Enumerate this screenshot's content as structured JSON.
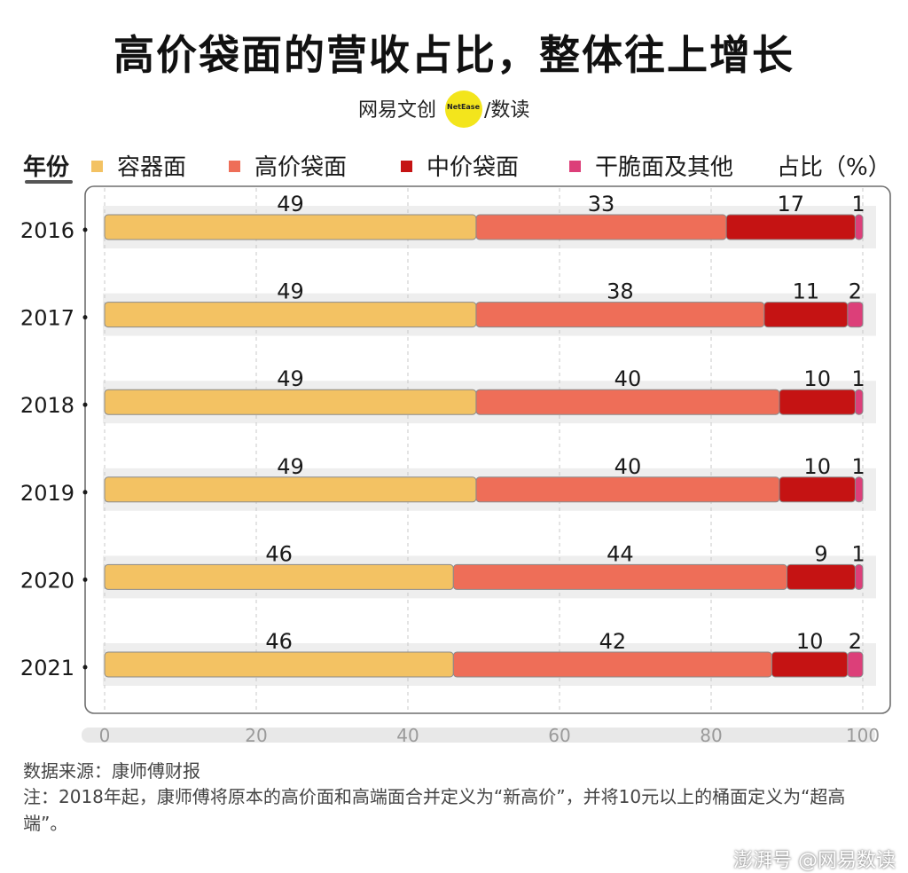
{
  "title": "高价袋面的营收占比，整体往上增长",
  "brand": {
    "left": "网易文创",
    "badge": "NetEase",
    "right": "∕数读"
  },
  "legend": {
    "year_header": "年份",
    "unit": "占比（%）",
    "items": [
      {
        "label": "容器面",
        "color": "#f3c263"
      },
      {
        "label": "高价袋面",
        "color": "#ee6e58"
      },
      {
        "label": "中价袋面",
        "color": "#c51313"
      },
      {
        "label": "干脆面及其他",
        "color": "#dc3f79"
      }
    ]
  },
  "chart_data": {
    "type": "bar",
    "orientation": "horizontal-stacked",
    "categories": [
      "2016",
      "2017",
      "2018",
      "2019",
      "2020",
      "2021"
    ],
    "series": [
      {
        "name": "容器面",
        "values": [
          49,
          49,
          49,
          49,
          46,
          46
        ],
        "color": "#f3c263"
      },
      {
        "name": "高价袋面",
        "values": [
          33,
          38,
          40,
          40,
          44,
          42
        ],
        "color": "#ee6e58"
      },
      {
        "name": "中价袋面",
        "values": [
          17,
          11,
          10,
          10,
          9,
          10
        ],
        "color": "#c51313"
      },
      {
        "name": "干脆面及其他",
        "values": [
          1,
          2,
          1,
          1,
          1,
          2
        ],
        "color": "#dc3f79"
      }
    ],
    "xlim": [
      0,
      100
    ],
    "xticks": [
      "0",
      "20",
      "40",
      "60",
      "80",
      "100"
    ],
    "grid": true
  },
  "source": "数据来源：康师傅财报",
  "note": "注：2018年起，康师傅将原本的高价面和高端面合并定义为“新高价”，并将10元以上的桶面定义为“超高端”。",
  "watermark": "澎湃号 @网易数读"
}
